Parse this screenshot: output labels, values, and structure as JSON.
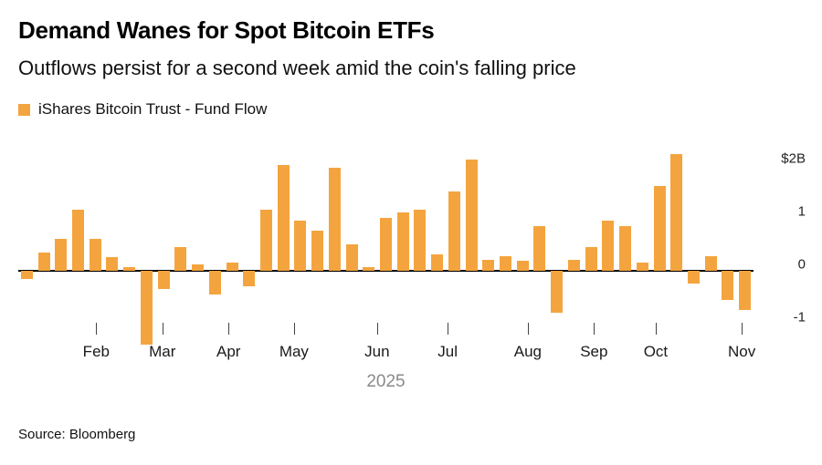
{
  "title": "Demand Wanes for Spot Bitcoin ETFs",
  "subtitle": "Outflows persist for a second week amid the coin's falling price",
  "legend": {
    "label": "iShares Bitcoin Trust - Fund Flow",
    "color": "#F4A43E"
  },
  "source": "Source: Bloomberg",
  "chart_data": {
    "type": "bar",
    "title": "Demand Wanes for Spot Bitcoin ETFs",
    "subtitle": "Outflows persist for a second week amid the coin's falling price",
    "series_name": "iShares Bitcoin Trust - Fund Flow",
    "unit": "$B (weekly fund flow)",
    "values": [
      -0.15,
      0.35,
      0.6,
      1.15,
      0.6,
      0.25,
      0.07,
      -1.4,
      -0.35,
      0.45,
      0.12,
      -0.45,
      0.15,
      -0.3,
      1.15,
      2.0,
      0.95,
      0.75,
      1.95,
      0.5,
      0.07,
      1.0,
      1.1,
      1.15,
      0.3,
      1.5,
      2.1,
      0.2,
      0.28,
      0.18,
      0.85,
      -0.8,
      0.2,
      0.45,
      0.95,
      0.85,
      0.15,
      1.6,
      2.2,
      -0.25,
      0.28,
      -0.55,
      -0.75
    ],
    "y_ticks": [
      {
        "label": "$2B",
        "value": 2
      },
      {
        "label": "1",
        "value": 1
      },
      {
        "label": "0",
        "value": 0
      },
      {
        "label": "-1",
        "value": -1
      }
    ],
    "x_months": [
      {
        "label": "Feb",
        "pos": 0.106
      },
      {
        "label": "Mar",
        "pos": 0.196
      },
      {
        "label": "Apr",
        "pos": 0.286
      },
      {
        "label": "May",
        "pos": 0.375
      },
      {
        "label": "Jun",
        "pos": 0.488
      },
      {
        "label": "Jul",
        "pos": 0.584
      },
      {
        "label": "Aug",
        "pos": 0.693
      },
      {
        "label": "Sep",
        "pos": 0.783
      },
      {
        "label": "Oct",
        "pos": 0.867
      },
      {
        "label": "Nov",
        "pos": 0.984
      }
    ],
    "year_label": "2025",
    "ylim": [
      -1.4,
      2.5
    ],
    "bar_color": "#F4A43E",
    "grid": false,
    "legend_position": "top-left"
  }
}
